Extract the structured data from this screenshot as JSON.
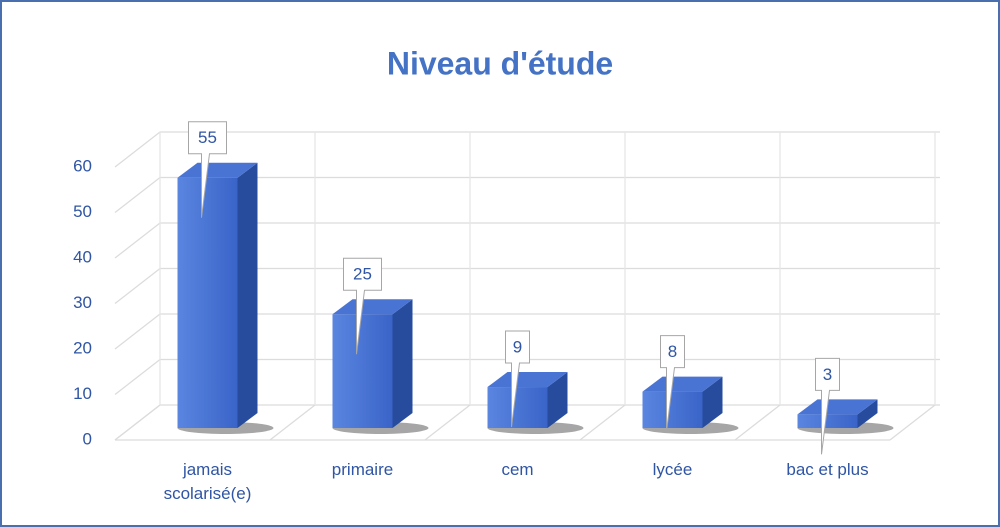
{
  "chart_data": {
    "type": "bar",
    "title": "Niveau d'étude",
    "categories": [
      "jamais scolarisé(e)",
      "primaire",
      "cem",
      "lycée",
      "bac et plus"
    ],
    "values": [
      55,
      25,
      9,
      8,
      3
    ],
    "color": "#3f6bd1",
    "ylim": [
      0,
      60
    ],
    "yticks": [
      0,
      10,
      20,
      30,
      40,
      50,
      60
    ],
    "grid": true
  }
}
